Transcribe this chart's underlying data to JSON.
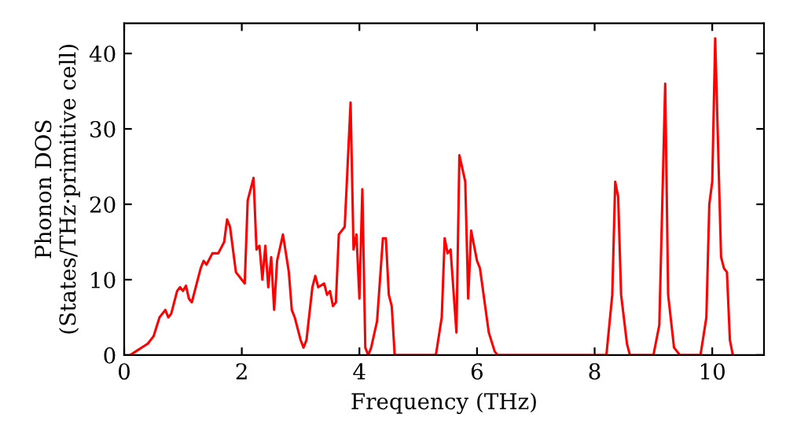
{
  "chart_data": {
    "type": "line",
    "xlabel": "Frequency (THz)",
    "ylabel": "Phonon DOS\n(States/THz·primitive cell)",
    "xlim": [
      0,
      10.88
    ],
    "ylim": [
      0,
      44
    ],
    "xticks": [
      0,
      2,
      4,
      6,
      8,
      10
    ],
    "yticks": [
      0,
      10,
      20,
      30,
      40
    ],
    "grid": false,
    "legend": false,
    "series": [
      {
        "color": "#ff0000",
        "x": [
          0.1,
          0.2,
          0.3,
          0.4,
          0.5,
          0.6,
          0.7,
          0.75,
          0.8,
          0.9,
          0.95,
          1.0,
          1.05,
          1.1,
          1.15,
          1.3,
          1.35,
          1.4,
          1.5,
          1.6,
          1.7,
          1.75,
          1.8,
          1.9,
          2.0,
          2.05,
          2.1,
          2.2,
          2.25,
          2.3,
          2.35,
          2.4,
          2.45,
          2.5,
          2.55,
          2.6,
          2.7,
          2.8,
          2.85,
          2.9,
          3.0,
          3.05,
          3.1,
          3.2,
          3.25,
          3.3,
          3.4,
          3.45,
          3.5,
          3.55,
          3.6,
          3.65,
          3.75,
          3.85,
          3.9,
          3.95,
          4.0,
          4.05,
          4.1,
          4.15,
          4.2,
          4.3,
          4.4,
          4.45,
          4.5,
          4.55,
          4.6,
          5.3,
          5.4,
          5.45,
          5.5,
          5.55,
          5.65,
          5.7,
          5.8,
          5.85,
          5.9,
          6.0,
          6.05,
          6.2,
          6.3,
          6.35,
          8.2,
          8.3,
          8.35,
          8.4,
          8.45,
          8.55,
          8.6,
          9.0,
          9.1,
          9.2,
          9.25,
          9.35,
          9.45,
          9.8,
          9.9,
          9.95,
          10.0,
          10.05,
          10.15,
          10.2,
          10.25,
          10.3,
          10.35
        ],
        "values": [
          0,
          0.5,
          1,
          1.5,
          2.5,
          5,
          6,
          5,
          5.5,
          8.5,
          9,
          8.5,
          9.2,
          7.5,
          7,
          11.5,
          12.5,
          12,
          13.5,
          13.5,
          15,
          18,
          17,
          11,
          10,
          9.5,
          20.5,
          23.5,
          14,
          14.5,
          10,
          14.5,
          9,
          13,
          6,
          12.5,
          16,
          11,
          6,
          5,
          2,
          1,
          2,
          9,
          10.5,
          9,
          9.5,
          8,
          8.5,
          6.5,
          7,
          16,
          17,
          33.5,
          14,
          16,
          7.5,
          22,
          1,
          0,
          1,
          4.5,
          15.5,
          15.5,
          8,
          6.5,
          0,
          0,
          5,
          15.5,
          13.5,
          14,
          3,
          26.5,
          23,
          7.5,
          16.5,
          12.5,
          11.5,
          3,
          0.5,
          0,
          0,
          8,
          23,
          21,
          8,
          1.5,
          0,
          0,
          4,
          36,
          8,
          1,
          0,
          0,
          5,
          20,
          23,
          42,
          13,
          11.5,
          11,
          2,
          0
        ]
      }
    ]
  }
}
